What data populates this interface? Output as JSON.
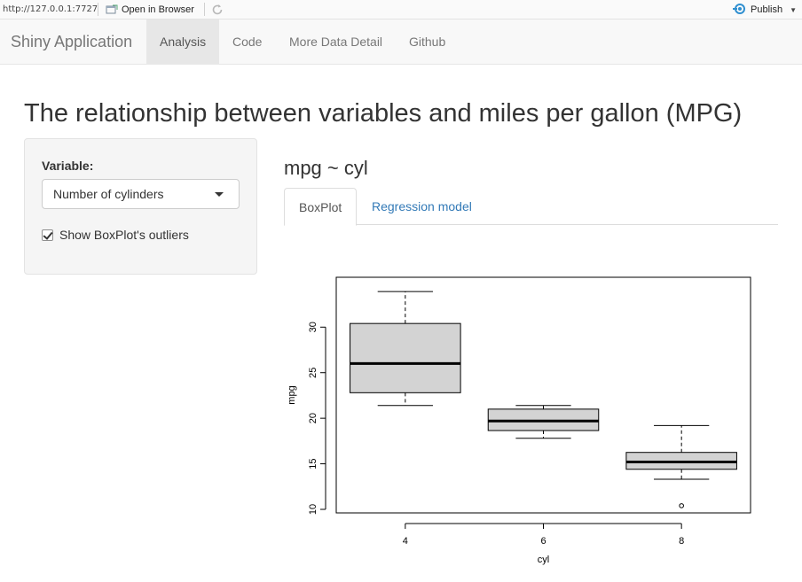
{
  "viewer": {
    "url": "http://127.0.0.1:7727",
    "open_in_browser": "Open in Browser",
    "publish": "Publish"
  },
  "navbar": {
    "brand": "Shiny Application",
    "tabs": [
      {
        "label": "Analysis",
        "active": true
      },
      {
        "label": "Code",
        "active": false
      },
      {
        "label": "More Data Detail",
        "active": false
      },
      {
        "label": "Github",
        "active": false
      }
    ]
  },
  "page": {
    "title": "The relationship between variables and miles per gallon (MPG)"
  },
  "sidebar": {
    "variable_label": "Variable:",
    "variable_selected": "Number of cylinders",
    "outliers_checkbox_label": "Show BoxPlot's outliers",
    "outliers_checked": true
  },
  "main": {
    "formula": "mpg ~ cyl",
    "tabs": [
      {
        "label": "BoxPlot",
        "active": true
      },
      {
        "label": "Regression model",
        "active": false
      }
    ]
  },
  "chart_data": {
    "type": "boxplot",
    "xlabel": "cyl",
    "ylabel": "mpg",
    "ylim": [
      10,
      34.5
    ],
    "yticks": [
      10,
      15,
      20,
      25,
      30
    ],
    "categories": [
      "4",
      "6",
      "8"
    ],
    "boxes": [
      {
        "category": "4",
        "whisker_low": 21.4,
        "q1": 22.8,
        "median": 26.0,
        "q3": 30.4,
        "whisker_high": 33.9,
        "outliers": []
      },
      {
        "category": "6",
        "whisker_low": 17.8,
        "q1": 18.65,
        "median": 19.7,
        "q3": 21.0,
        "whisker_high": 21.4,
        "outliers": []
      },
      {
        "category": "8",
        "whisker_low": 13.3,
        "q1": 14.4,
        "median": 15.2,
        "q3": 16.25,
        "whisker_high": 19.2,
        "outliers": [
          10.4
        ]
      }
    ],
    "box_fill": "#d3d3d3"
  }
}
